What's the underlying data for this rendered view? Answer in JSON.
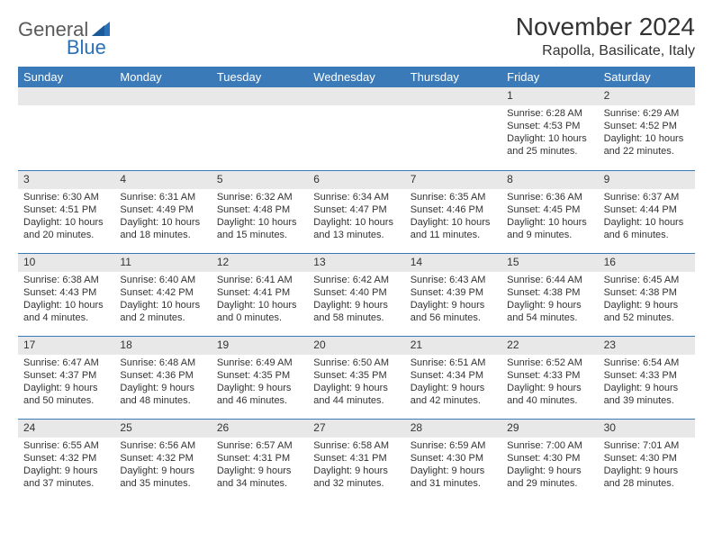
{
  "logo": {
    "general": "General",
    "blue": "Blue"
  },
  "title": "November 2024",
  "location": "Rapolla, Basilicate, Italy",
  "dayNames": [
    "Sunday",
    "Monday",
    "Tuesday",
    "Wednesday",
    "Thursday",
    "Friday",
    "Saturday"
  ],
  "colors": {
    "headerBg": "#3a7ab8",
    "dayStripBg": "#e8e8e8",
    "borderColor": "#3a7ab8",
    "textColor": "#333333",
    "logoGray": "#5a5a5a",
    "logoBlue": "#2a71b8"
  },
  "grid": {
    "rows": 5,
    "cols": 7,
    "startOffset": 5,
    "daysInMonth": 30
  },
  "days": {
    "1": {
      "sunrise": "6:28 AM",
      "sunset": "4:53 PM",
      "daylight": "10 hours and 25 minutes."
    },
    "2": {
      "sunrise": "6:29 AM",
      "sunset": "4:52 PM",
      "daylight": "10 hours and 22 minutes."
    },
    "3": {
      "sunrise": "6:30 AM",
      "sunset": "4:51 PM",
      "daylight": "10 hours and 20 minutes."
    },
    "4": {
      "sunrise": "6:31 AM",
      "sunset": "4:49 PM",
      "daylight": "10 hours and 18 minutes."
    },
    "5": {
      "sunrise": "6:32 AM",
      "sunset": "4:48 PM",
      "daylight": "10 hours and 15 minutes."
    },
    "6": {
      "sunrise": "6:34 AM",
      "sunset": "4:47 PM",
      "daylight": "10 hours and 13 minutes."
    },
    "7": {
      "sunrise": "6:35 AM",
      "sunset": "4:46 PM",
      "daylight": "10 hours and 11 minutes."
    },
    "8": {
      "sunrise": "6:36 AM",
      "sunset": "4:45 PM",
      "daylight": "10 hours and 9 minutes."
    },
    "9": {
      "sunrise": "6:37 AM",
      "sunset": "4:44 PM",
      "daylight": "10 hours and 6 minutes."
    },
    "10": {
      "sunrise": "6:38 AM",
      "sunset": "4:43 PM",
      "daylight": "10 hours and 4 minutes."
    },
    "11": {
      "sunrise": "6:40 AM",
      "sunset": "4:42 PM",
      "daylight": "10 hours and 2 minutes."
    },
    "12": {
      "sunrise": "6:41 AM",
      "sunset": "4:41 PM",
      "daylight": "10 hours and 0 minutes."
    },
    "13": {
      "sunrise": "6:42 AM",
      "sunset": "4:40 PM",
      "daylight": "9 hours and 58 minutes."
    },
    "14": {
      "sunrise": "6:43 AM",
      "sunset": "4:39 PM",
      "daylight": "9 hours and 56 minutes."
    },
    "15": {
      "sunrise": "6:44 AM",
      "sunset": "4:38 PM",
      "daylight": "9 hours and 54 minutes."
    },
    "16": {
      "sunrise": "6:45 AM",
      "sunset": "4:38 PM",
      "daylight": "9 hours and 52 minutes."
    },
    "17": {
      "sunrise": "6:47 AM",
      "sunset": "4:37 PM",
      "daylight": "9 hours and 50 minutes."
    },
    "18": {
      "sunrise": "6:48 AM",
      "sunset": "4:36 PM",
      "daylight": "9 hours and 48 minutes."
    },
    "19": {
      "sunrise": "6:49 AM",
      "sunset": "4:35 PM",
      "daylight": "9 hours and 46 minutes."
    },
    "20": {
      "sunrise": "6:50 AM",
      "sunset": "4:35 PM",
      "daylight": "9 hours and 44 minutes."
    },
    "21": {
      "sunrise": "6:51 AM",
      "sunset": "4:34 PM",
      "daylight": "9 hours and 42 minutes."
    },
    "22": {
      "sunrise": "6:52 AM",
      "sunset": "4:33 PM",
      "daylight": "9 hours and 40 minutes."
    },
    "23": {
      "sunrise": "6:54 AM",
      "sunset": "4:33 PM",
      "daylight": "9 hours and 39 minutes."
    },
    "24": {
      "sunrise": "6:55 AM",
      "sunset": "4:32 PM",
      "daylight": "9 hours and 37 minutes."
    },
    "25": {
      "sunrise": "6:56 AM",
      "sunset": "4:32 PM",
      "daylight": "9 hours and 35 minutes."
    },
    "26": {
      "sunrise": "6:57 AM",
      "sunset": "4:31 PM",
      "daylight": "9 hours and 34 minutes."
    },
    "27": {
      "sunrise": "6:58 AM",
      "sunset": "4:31 PM",
      "daylight": "9 hours and 32 minutes."
    },
    "28": {
      "sunrise": "6:59 AM",
      "sunset": "4:30 PM",
      "daylight": "9 hours and 31 minutes."
    },
    "29": {
      "sunrise": "7:00 AM",
      "sunset": "4:30 PM",
      "daylight": "9 hours and 29 minutes."
    },
    "30": {
      "sunrise": "7:01 AM",
      "sunset": "4:30 PM",
      "daylight": "9 hours and 28 minutes."
    }
  },
  "labels": {
    "sunrise": "Sunrise:",
    "sunset": "Sunset:",
    "daylight": "Daylight:"
  }
}
